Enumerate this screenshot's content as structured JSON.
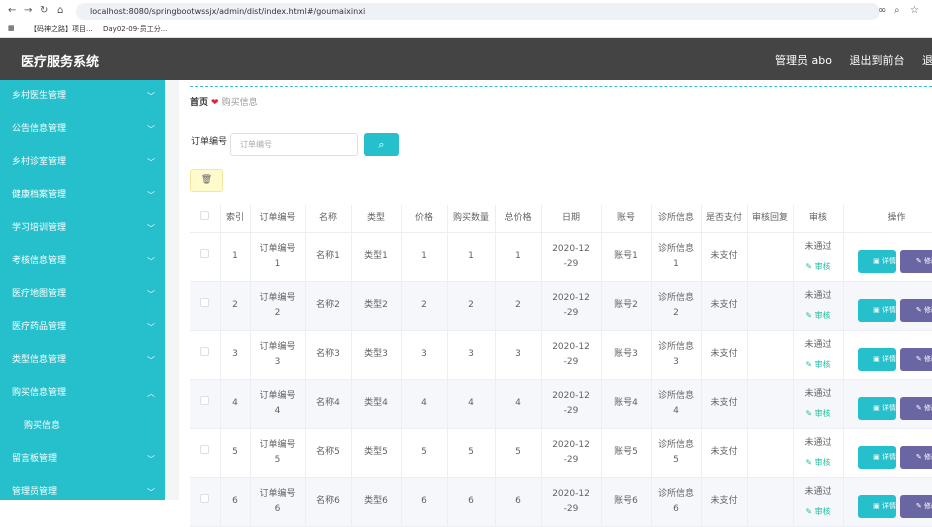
{
  "browser": {
    "url": "localhost:8080/springbootwssjx/admin/dist/index.html#/goumaixinxi",
    "bookmarks": [
      "【码神之路】项目...",
      "Day02-09-员工分..."
    ]
  },
  "header": {
    "title": "医疗服务系统",
    "user": "管理员 abo",
    "front": "退出到前台",
    "logout": "退出登录"
  },
  "sidebar": {
    "items": [
      {
        "label": "乡村医生管理"
      },
      {
        "label": "公告信息管理"
      },
      {
        "label": "乡村诊室管理"
      },
      {
        "label": "健康档案管理"
      },
      {
        "label": "学习培训管理"
      },
      {
        "label": "考核信息管理"
      },
      {
        "label": "医疗地图管理"
      },
      {
        "label": "医疗药品管理"
      },
      {
        "label": "类型信息管理"
      },
      {
        "label": "购买信息管理",
        "expanded": true,
        "children": [
          {
            "label": "购买信息"
          }
        ]
      },
      {
        "label": "留言板管理"
      },
      {
        "label": "管理员管理"
      }
    ]
  },
  "breadcrumb": {
    "home": "首页",
    "current": "购买信息"
  },
  "search": {
    "label": "订单编号",
    "placeholder": "订单编号"
  },
  "table": {
    "headers": [
      "索引",
      "订单编号",
      "名称",
      "类型",
      "价格",
      "购买数量",
      "总价格",
      "日期",
      "账号",
      "诊所信息",
      "是否支付",
      "审核回复",
      "审核",
      "操作"
    ],
    "rows": [
      [
        "1",
        "订单编号1",
        "名称1",
        "类型1",
        "1",
        "1",
        "1",
        "2020-12-29",
        "账号1",
        "诊所信息1",
        "未支付",
        "",
        "未通过"
      ],
      [
        "2",
        "订单编号2",
        "名称2",
        "类型2",
        "2",
        "2",
        "2",
        "2020-12-29",
        "账号2",
        "诊所信息2",
        "未支付",
        "",
        "未通过"
      ],
      [
        "3",
        "订单编号3",
        "名称3",
        "类型3",
        "3",
        "3",
        "3",
        "2020-12-29",
        "账号3",
        "诊所信息3",
        "未支付",
        "",
        "未通过"
      ],
      [
        "4",
        "订单编号4",
        "名称4",
        "类型4",
        "4",
        "4",
        "4",
        "2020-12-29",
        "账号4",
        "诊所信息4",
        "未支付",
        "",
        "未通过"
      ],
      [
        "5",
        "订单编号5",
        "名称5",
        "类型5",
        "5",
        "5",
        "5",
        "2020-12-29",
        "账号5",
        "诊所信息5",
        "未支付",
        "",
        "未通过"
      ],
      [
        "6",
        "订单编号6",
        "名称6",
        "类型6",
        "6",
        "6",
        "6",
        "2020-12-29",
        "账号6",
        "诊所信息6",
        "未支付",
        "",
        "未通过"
      ]
    ],
    "audit_link": "审核",
    "detail_btn": "详情",
    "edit_btn": "修改"
  },
  "colors": {
    "accent": "#26c0cc",
    "header": "#444444",
    "edit": "#6a66a3",
    "delete": "#fffbcc"
  }
}
